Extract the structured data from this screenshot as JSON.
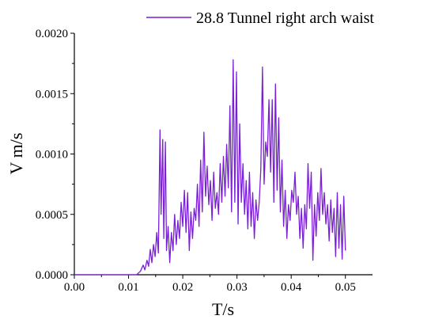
{
  "chart_data": {
    "type": "line",
    "title": "",
    "xlabel": "T/s",
    "ylabel": "V m/s",
    "xlim": [
      0.0,
      0.055
    ],
    "ylim": [
      0.0,
      0.002
    ],
    "x_ticks": [
      "0.00",
      "0.01",
      "0.02",
      "0.03",
      "0.04",
      "0.05"
    ],
    "y_ticks": [
      "0.0000",
      "0.0005",
      "0.0010",
      "0.0015",
      "0.0020"
    ],
    "grid": false,
    "legend_position": "top-right",
    "series": [
      {
        "name": "28.8 Tunnel right arch waist",
        "color": "#7a1fd6",
        "x": [
          0.0,
          0.0115,
          0.0122,
          0.0127,
          0.013,
          0.0134,
          0.0137,
          0.014,
          0.0143,
          0.0146,
          0.0149,
          0.0152,
          0.0155,
          0.0158,
          0.016,
          0.0163,
          0.0165,
          0.0168,
          0.017,
          0.0173,
          0.0176,
          0.0179,
          0.0182,
          0.0185,
          0.0188,
          0.0191,
          0.0194,
          0.0197,
          0.02,
          0.0203,
          0.0206,
          0.0209,
          0.0212,
          0.0215,
          0.0218,
          0.0221,
          0.0224,
          0.0227,
          0.023,
          0.0233,
          0.0236,
          0.0239,
          0.0242,
          0.0245,
          0.0248,
          0.0251,
          0.0254,
          0.0257,
          0.026,
          0.0263,
          0.0266,
          0.0269,
          0.0272,
          0.0275,
          0.0278,
          0.0281,
          0.0284,
          0.0287,
          0.029,
          0.0293,
          0.0296,
          0.0299,
          0.0302,
          0.0305,
          0.0308,
          0.0311,
          0.0314,
          0.0317,
          0.032,
          0.0323,
          0.0326,
          0.0329,
          0.0332,
          0.0335,
          0.0338,
          0.0341,
          0.0344,
          0.0347,
          0.035,
          0.0353,
          0.0356,
          0.0359,
          0.0362,
          0.0365,
          0.0368,
          0.0371,
          0.0374,
          0.0377,
          0.038,
          0.0383,
          0.0386,
          0.0389,
          0.0392,
          0.0395,
          0.0398,
          0.0401,
          0.0404,
          0.0407,
          0.041,
          0.0413,
          0.0416,
          0.0419,
          0.0422,
          0.0425,
          0.0428,
          0.0431,
          0.0434,
          0.0437,
          0.044,
          0.0443,
          0.0446,
          0.0449,
          0.0452,
          0.0455,
          0.0458,
          0.0461,
          0.0464,
          0.0467,
          0.047,
          0.0473,
          0.0476,
          0.0479,
          0.0482,
          0.0485,
          0.0488,
          0.0491,
          0.0494,
          0.0497,
          0.05
        ],
        "y": [
          0.0,
          0.0,
          3e-05,
          8e-05,
          4e-05,
          0.00012,
          7e-05,
          0.00021,
          0.0001,
          0.00025,
          0.00015,
          0.00035,
          0.00018,
          0.0012,
          0.0005,
          0.00112,
          0.0003,
          0.0011,
          0.0002,
          0.0004,
          0.0001,
          0.00035,
          0.0002,
          0.0005,
          0.00025,
          0.00045,
          0.0003,
          0.0006,
          0.0004,
          0.0007,
          0.00035,
          0.00068,
          0.0002,
          0.00052,
          0.0003,
          0.00055,
          0.00045,
          0.00075,
          0.0004,
          0.00095,
          0.00052,
          0.00118,
          0.00065,
          0.0009,
          0.00058,
          0.00078,
          0.00045,
          0.00085,
          0.00055,
          0.00068,
          0.0005,
          0.00092,
          0.0006,
          0.00098,
          0.00065,
          0.00108,
          0.00072,
          0.0014,
          0.00052,
          0.00178,
          0.0006,
          0.00168,
          0.00042,
          0.00125,
          0.0006,
          0.00092,
          0.0005,
          0.00078,
          0.00038,
          0.00085,
          0.0004,
          0.00068,
          0.0003,
          0.00062,
          0.00045,
          0.0006,
          0.00088,
          0.00172,
          0.00075,
          0.0011,
          0.00098,
          0.00145,
          0.00085,
          0.00145,
          0.0006,
          0.00158,
          0.0007,
          0.0013,
          0.00052,
          0.00095,
          0.0004,
          0.0007,
          0.0003,
          0.00058,
          0.00045,
          0.0007,
          0.0006,
          0.00085,
          0.0005,
          0.00065,
          0.0003,
          0.00055,
          0.00022,
          0.00058,
          0.00038,
          0.00092,
          0.00055,
          0.00085,
          0.00012,
          0.00058,
          0.00032,
          0.00068,
          0.00045,
          0.00088,
          0.0005,
          0.00068,
          0.00042,
          0.00058,
          0.00028,
          0.00062,
          0.00035,
          0.00055,
          0.00015,
          0.00068,
          0.00022,
          0.00058,
          0.00013,
          0.00065,
          0.0002
        ]
      }
    ]
  }
}
